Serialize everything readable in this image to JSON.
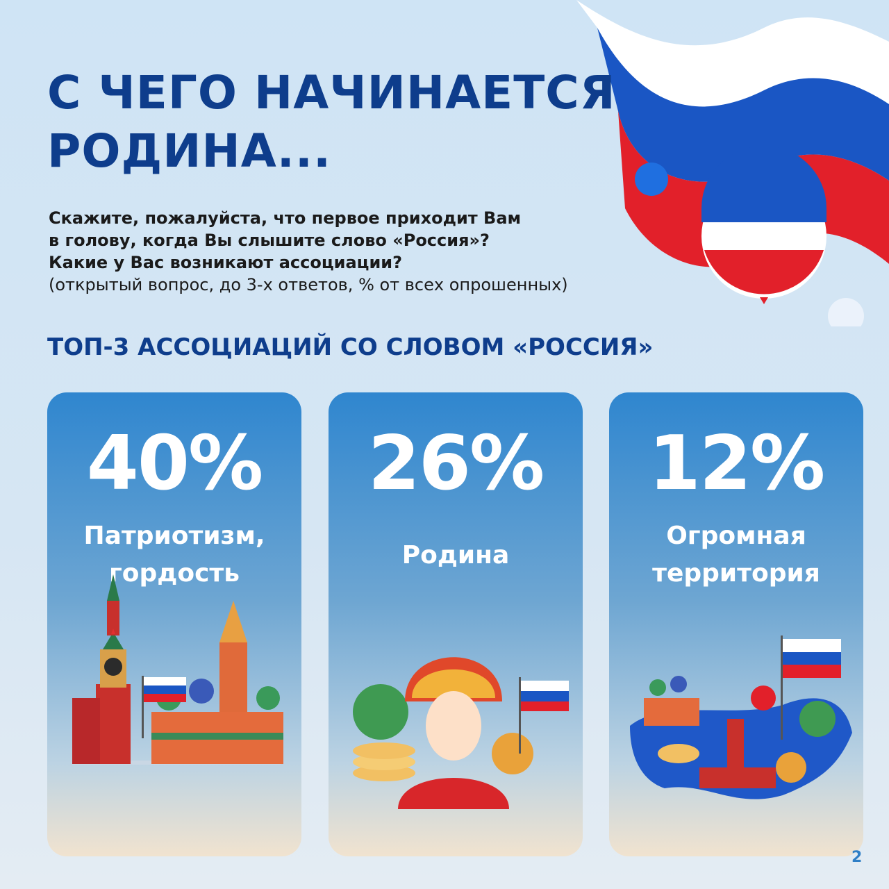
{
  "header": {
    "title_lines": [
      "С ЧЕГО НАЧИНАЕТСЯ",
      "РОДИНА..."
    ]
  },
  "question": {
    "lines": [
      "Скажите, пожалуйста, что первое приходит Вам",
      "в голову, когда Вы слышите слово «Россия»?",
      "Какие у Вас возникают ассоциации?"
    ],
    "note": "(открытый вопрос, до 3-х ответов, % от всех опрошенных)"
  },
  "section_title": "ТОП-3 АССОЦИАЦИЙ СО СЛОВОМ «РОССИЯ»",
  "cards": [
    {
      "value": "40%",
      "label_lines": [
        "Патриотизм,",
        "гордость"
      ]
    },
    {
      "value": "26%",
      "label_lines": [
        "Родина"
      ]
    },
    {
      "value": "12%",
      "label_lines": [
        "Огромная",
        "территория"
      ]
    }
  ],
  "page_number": "2"
}
